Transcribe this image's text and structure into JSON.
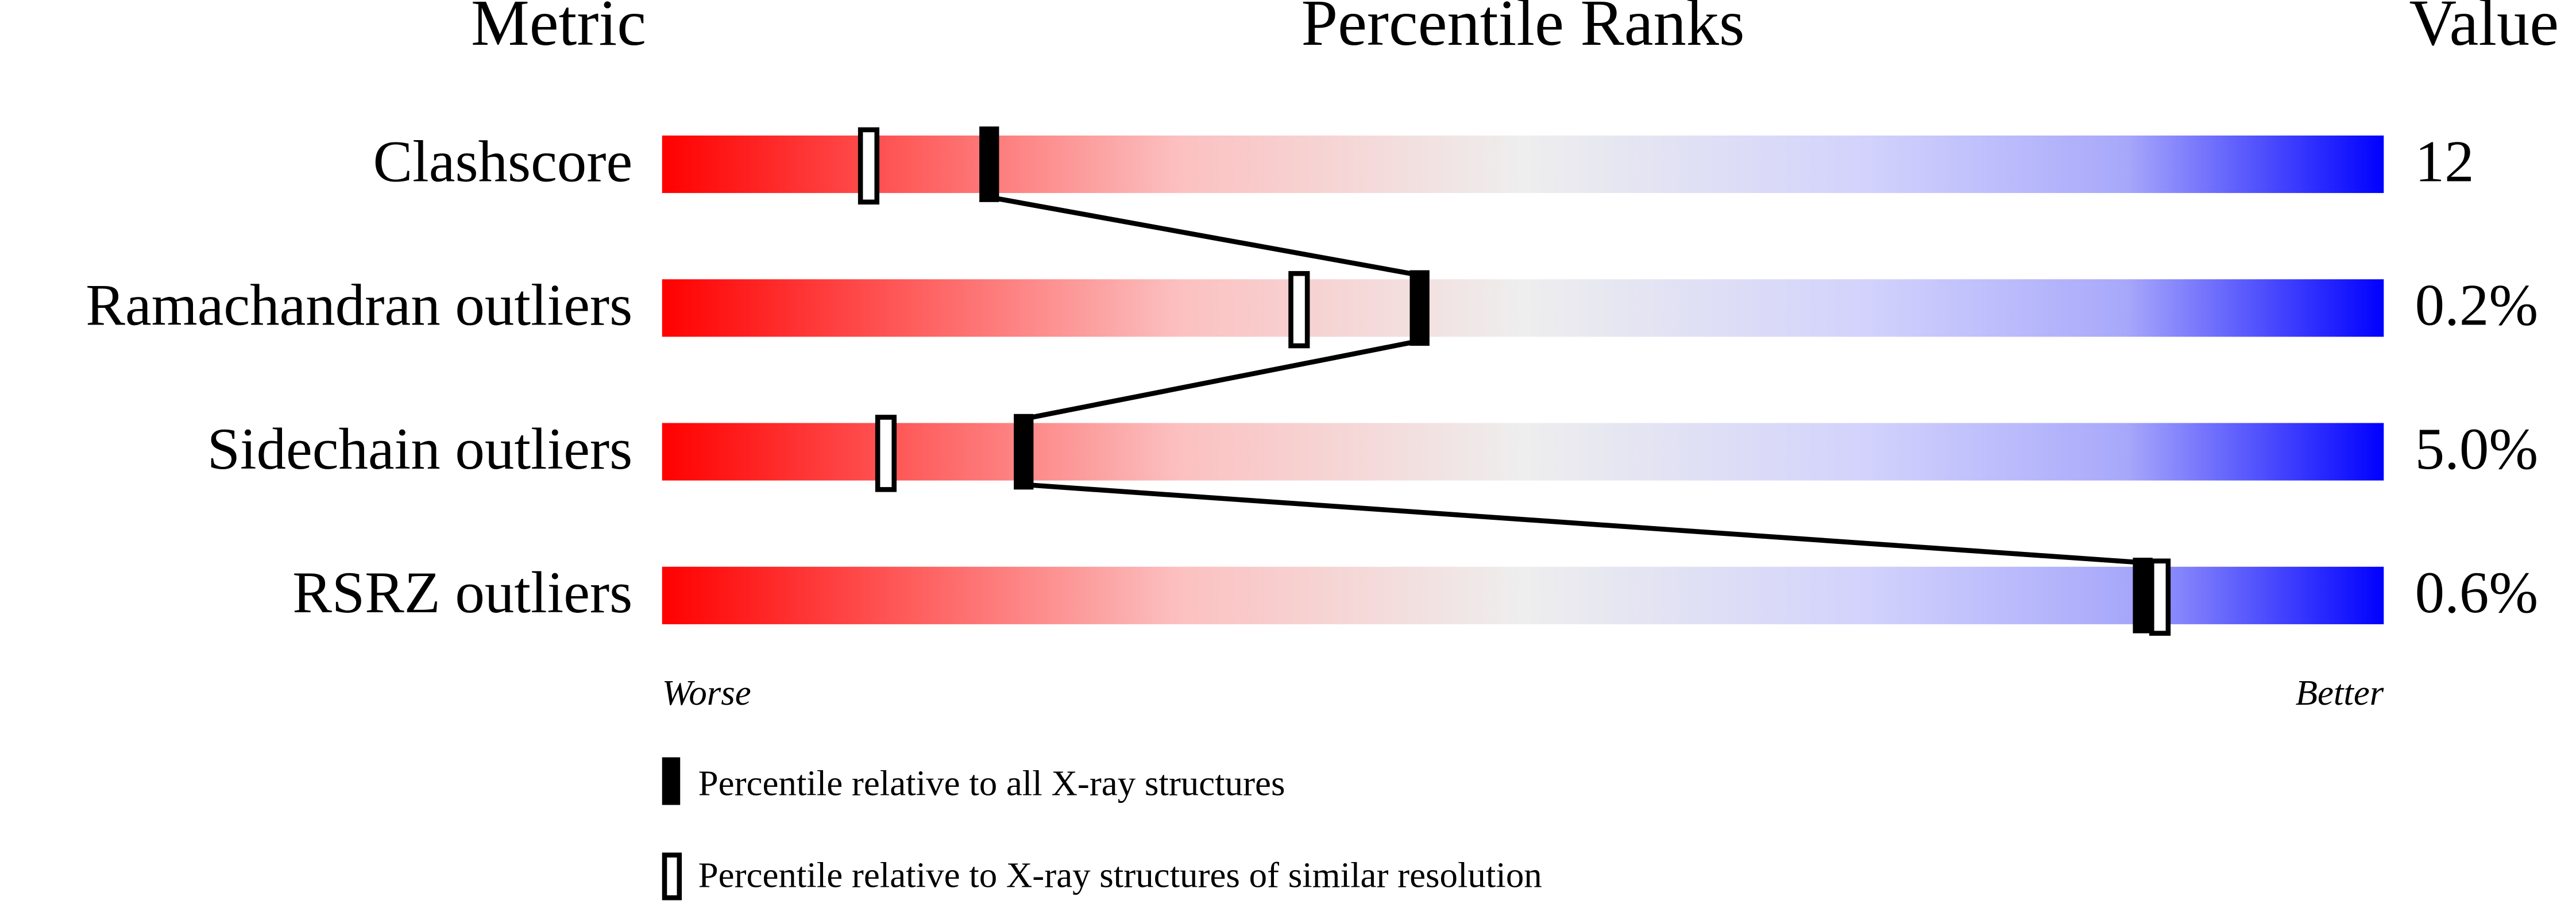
{
  "headers": {
    "metric": "Metric",
    "percentile": "Percentile Ranks",
    "value": "Value"
  },
  "xlim": [
    0,
    100
  ],
  "metrics": [
    {
      "label": "Clashscore",
      "value": "12",
      "percentile_all": 19,
      "percentile_similar": 12
    },
    {
      "label": "Ramachandran outliers",
      "value": "0.2%",
      "percentile_all": 44,
      "percentile_similar": 37
    },
    {
      "label": "Sidechain outliers",
      "value": "5.0%",
      "percentile_all": 21,
      "percentile_similar": 13
    },
    {
      "label": "RSRZ outliers",
      "value": "0.6%",
      "percentile_all": 86,
      "percentile_similar": 87
    }
  ],
  "scale": {
    "worse": "Worse",
    "better": "Better"
  },
  "legend": {
    "all": "Percentile relative to all X-ray structures",
    "similar": "Percentile relative to X-ray structures of similar resolution"
  }
}
